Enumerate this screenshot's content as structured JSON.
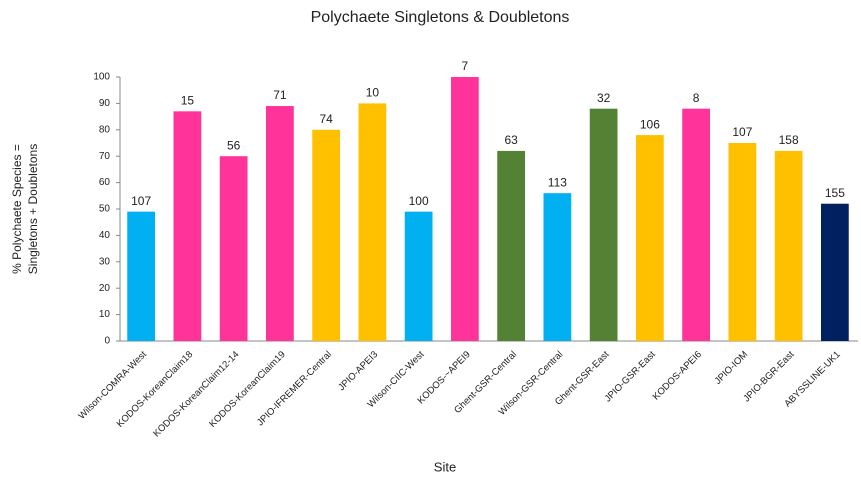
{
  "chart_data": {
    "type": "bar",
    "title": "Polychaete Singletons & Doubletons",
    "xlabel": "Site",
    "ylabel": [
      "% Polychaete Species =",
      "Singletons + Doubletons"
    ],
    "categories": [
      "Wilson-COMRA-West",
      "KODOS-KoreanClaim18",
      "KODOS-KoreanClaim12-14",
      "KODOS-KoreanClaim19",
      "JPIO-IFREMER-Central",
      "JPIO-APEI3",
      "Wilson-CIIC-West",
      "KODOS-~APEI9",
      "Ghent-GSR-Central",
      "Wilson-GSR-Central",
      "Ghent-GSR-East",
      "JPIO-GSR-East",
      "KODOS-APEI6",
      "JPIO-IOM",
      "JPIO-BGR-East",
      "ABYSSLINE-UK1"
    ],
    "values": [
      49,
      87,
      70,
      89,
      80,
      90,
      49,
      100,
      72,
      56,
      88,
      78,
      88,
      75,
      72,
      52
    ],
    "bar_labels": [
      107,
      15,
      56,
      71,
      74,
      10,
      100,
      7,
      63,
      113,
      32,
      106,
      8,
      107,
      158,
      155
    ],
    "colors": [
      "#00b0f0",
      "#ff3399",
      "#ff3399",
      "#ff3399",
      "#ffc000",
      "#ffc000",
      "#00b0f0",
      "#ff3399",
      "#548235",
      "#00b0f0",
      "#548235",
      "#ffc000",
      "#ff3399",
      "#ffc000",
      "#ffc000",
      "#002060"
    ],
    "ylim": [
      0,
      100
    ],
    "yticks": [
      0,
      10,
      20,
      30,
      40,
      50,
      60,
      70,
      80,
      90,
      100
    ],
    "grid": false
  }
}
